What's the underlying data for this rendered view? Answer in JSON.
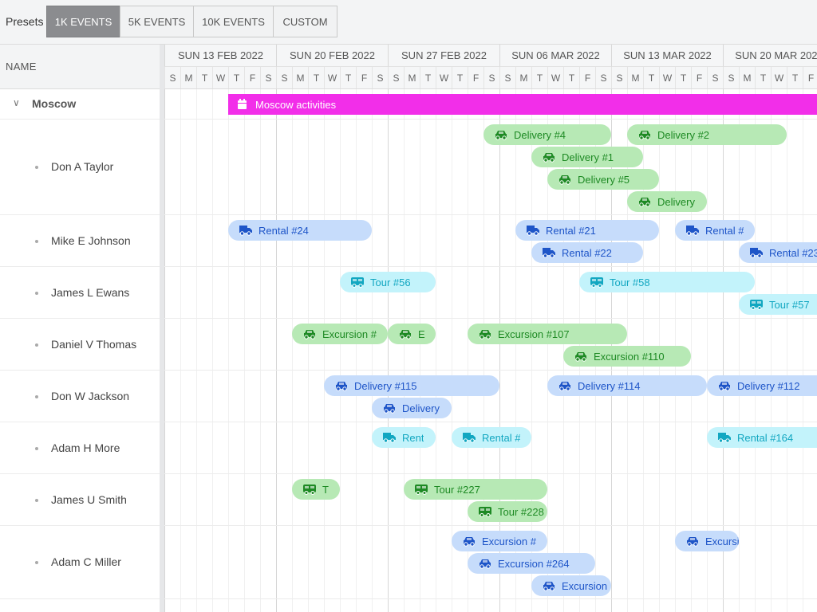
{
  "toolbar": {
    "presets_label": "Presets",
    "presets": [
      {
        "label": "1K EVENTS",
        "active": true
      },
      {
        "label": "5K EVENTS",
        "active": false
      },
      {
        "label": "10K EVENTS",
        "active": false
      },
      {
        "label": "CUSTOM",
        "active": false
      }
    ]
  },
  "grid": {
    "name_column_header": "NAME",
    "weeks": [
      "SUN 13 FEB 2022",
      "SUN 20 FEB 2022",
      "SUN 27 FEB 2022",
      "SUN 06 MAR 2022",
      "SUN 13 MAR 2022",
      "SUN 20 MAR 2022"
    ],
    "day_letters": [
      "S",
      "M",
      "T",
      "W",
      "T",
      "F",
      "S"
    ]
  },
  "resources": [
    {
      "name": "Moscow",
      "type": "group",
      "expanded": true
    },
    {
      "name": "Don A Taylor",
      "type": "person"
    },
    {
      "name": "Mike E Johnson",
      "type": "person"
    },
    {
      "name": "James L Ewans",
      "type": "person"
    },
    {
      "name": "Daniel V Thomas",
      "type": "person"
    },
    {
      "name": "Don W Jackson",
      "type": "person"
    },
    {
      "name": "Adam H More",
      "type": "person"
    },
    {
      "name": "James U Smith",
      "type": "person"
    },
    {
      "name": "Adam C Miller",
      "type": "person"
    }
  ],
  "colors": {
    "green": "#b7e9b5",
    "blue": "#c6dcfb",
    "cyan": "#c3f3fb",
    "magenta": "#f22ee9",
    "active_preset": "#8b8c8f"
  },
  "events": [
    {
      "label": "Moscow activities",
      "resource": 0,
      "lane": 0,
      "start": "2022-02-17",
      "end": "2022-03-28",
      "color": "magenta",
      "icon": "calendar-icon"
    },
    {
      "label": "Delivery #4",
      "resource": 1,
      "lane": 0,
      "start": "2022-03-05",
      "end": "2022-03-13",
      "color": "green",
      "icon": "car-icon"
    },
    {
      "label": "Delivery #2",
      "resource": 1,
      "lane": 0,
      "start": "2022-03-14",
      "end": "2022-03-24",
      "color": "green",
      "icon": "car-icon"
    },
    {
      "label": "Delivery #1",
      "resource": 1,
      "lane": 1,
      "start": "2022-03-08",
      "end": "2022-03-15",
      "color": "green",
      "icon": "car-icon"
    },
    {
      "label": "Delivery #5",
      "resource": 1,
      "lane": 2,
      "start": "2022-03-09",
      "end": "2022-03-16",
      "color": "green",
      "icon": "car-icon"
    },
    {
      "label": "Delivery",
      "resource": 1,
      "lane": 3,
      "start": "2022-03-14",
      "end": "2022-03-19",
      "color": "green",
      "icon": "car-icon"
    },
    {
      "label": "Rental #24",
      "resource": 2,
      "lane": 0,
      "start": "2022-02-17",
      "end": "2022-02-26",
      "color": "blue",
      "icon": "truck-icon"
    },
    {
      "label": "Rental #21",
      "resource": 2,
      "lane": 0,
      "start": "2022-03-07",
      "end": "2022-03-16",
      "color": "blue",
      "icon": "truck-icon"
    },
    {
      "label": "Rental #",
      "resource": 2,
      "lane": 0,
      "start": "2022-03-17",
      "end": "2022-03-22",
      "color": "blue",
      "icon": "truck-icon"
    },
    {
      "label": "Rental #22",
      "resource": 2,
      "lane": 1,
      "start": "2022-03-08",
      "end": "2022-03-15",
      "color": "blue",
      "icon": "truck-icon"
    },
    {
      "label": "Rental #23",
      "resource": 2,
      "lane": 1,
      "start": "2022-03-21",
      "end": "2022-03-28",
      "color": "blue",
      "icon": "truck-icon"
    },
    {
      "label": "Tour #56",
      "resource": 3,
      "lane": 0,
      "start": "2022-02-24",
      "end": "2022-03-02",
      "color": "cyan",
      "icon": "bus-icon"
    },
    {
      "label": "Tour #58",
      "resource": 3,
      "lane": 0,
      "start": "2022-03-11",
      "end": "2022-03-22",
      "color": "cyan",
      "icon": "bus-icon"
    },
    {
      "label": "Tour #57",
      "resource": 3,
      "lane": 1,
      "start": "2022-03-21",
      "end": "2022-03-28",
      "color": "cyan",
      "icon": "bus-icon"
    },
    {
      "label": "Excursion #",
      "resource": 4,
      "lane": 0,
      "start": "2022-02-21",
      "end": "2022-02-27",
      "color": "green",
      "icon": "car-icon"
    },
    {
      "label": "E",
      "resource": 4,
      "lane": 0,
      "start": "2022-02-27",
      "end": "2022-03-02",
      "color": "green",
      "icon": "car-icon"
    },
    {
      "label": "Excursion #107",
      "resource": 4,
      "lane": 0,
      "start": "2022-03-04",
      "end": "2022-03-14",
      "color": "green",
      "icon": "car-icon"
    },
    {
      "label": "Excursion #110",
      "resource": 4,
      "lane": 1,
      "start": "2022-03-10",
      "end": "2022-03-18",
      "color": "green",
      "icon": "car-icon"
    },
    {
      "label": "Delivery #115",
      "resource": 5,
      "lane": 0,
      "start": "2022-02-23",
      "end": "2022-03-06",
      "color": "blue",
      "icon": "car-icon"
    },
    {
      "label": "Delivery #114",
      "resource": 5,
      "lane": 0,
      "start": "2022-03-09",
      "end": "2022-03-19",
      "color": "blue",
      "icon": "car-icon"
    },
    {
      "label": "Delivery #112",
      "resource": 5,
      "lane": 0,
      "start": "2022-03-19",
      "end": "2022-03-28",
      "color": "blue",
      "icon": "car-icon"
    },
    {
      "label": "Delivery",
      "resource": 5,
      "lane": 1,
      "start": "2022-02-26",
      "end": "2022-03-03",
      "color": "blue",
      "icon": "car-icon"
    },
    {
      "label": "Rent",
      "resource": 6,
      "lane": 0,
      "start": "2022-02-26",
      "end": "2022-03-02",
      "color": "cyan",
      "icon": "truck-icon"
    },
    {
      "label": "Rental #",
      "resource": 6,
      "lane": 0,
      "start": "2022-03-03",
      "end": "2022-03-08",
      "color": "cyan",
      "icon": "truck-icon"
    },
    {
      "label": "Rental #164",
      "resource": 6,
      "lane": 0,
      "start": "2022-03-19",
      "end": "2022-03-28",
      "color": "cyan",
      "icon": "truck-icon"
    },
    {
      "label": "T",
      "resource": 7,
      "lane": 0,
      "start": "2022-02-21",
      "end": "2022-02-24",
      "color": "green",
      "icon": "bus-icon"
    },
    {
      "label": "Tour #227",
      "resource": 7,
      "lane": 0,
      "start": "2022-02-28",
      "end": "2022-03-09",
      "color": "green",
      "icon": "bus-icon"
    },
    {
      "label": "Tour #228",
      "resource": 7,
      "lane": 1,
      "start": "2022-03-04",
      "end": "2022-03-09",
      "color": "green",
      "icon": "bus-icon"
    },
    {
      "label": "Excursion #",
      "resource": 8,
      "lane": 0,
      "start": "2022-03-03",
      "end": "2022-03-09",
      "color": "blue",
      "icon": "car-icon"
    },
    {
      "label": "Excursion",
      "resource": 8,
      "lane": 0,
      "start": "2022-03-17",
      "end": "2022-03-21",
      "color": "blue",
      "icon": "car-icon"
    },
    {
      "label": "Excursion #264",
      "resource": 8,
      "lane": 1,
      "start": "2022-03-04",
      "end": "2022-03-12",
      "color": "blue",
      "icon": "car-icon"
    },
    {
      "label": "Excursion",
      "resource": 8,
      "lane": 2,
      "start": "2022-03-08",
      "end": "2022-03-13",
      "color": "blue",
      "icon": "car-icon"
    }
  ]
}
